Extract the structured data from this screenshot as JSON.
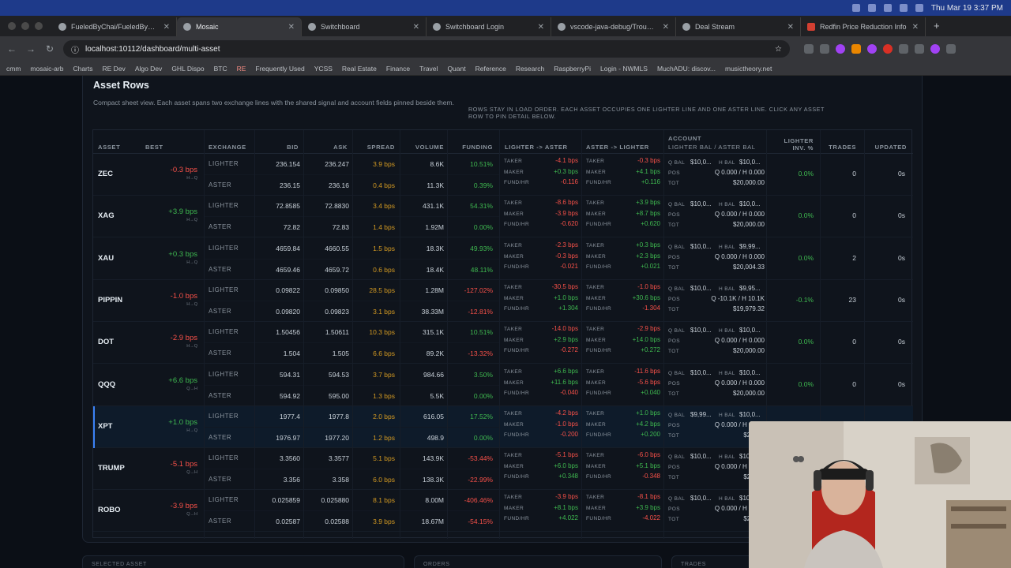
{
  "menubar": {
    "datetime": "Thu Mar 19  3:37 PM"
  },
  "tabs": [
    {
      "title": "FueledByChai/FueledByChaiTr",
      "active": false
    },
    {
      "title": "Mosaic",
      "active": true
    },
    {
      "title": "Switchboard",
      "active": false
    },
    {
      "title": "Switchboard Login",
      "active": false
    },
    {
      "title": "vscode-java-debug/Troubles",
      "active": false
    },
    {
      "title": "Deal Stream",
      "active": false
    },
    {
      "title": "Redfin Price Reduction Info",
      "active": false
    }
  ],
  "url": "localhost:10112/dashboard/multi-asset",
  "bookmarks": [
    "cmm",
    "mosaic-arb",
    "Charts",
    "RE Dev",
    "Algo Dev",
    "GHL Dispo",
    "BTC",
    "RE",
    "Frequently Used",
    "YCSS",
    "Real Estate",
    "Finance",
    "Travel",
    "Quant",
    "Reference",
    "Research",
    "RaspberryPi",
    "Login - NWMLS",
    "MuchADU: discov...",
    "musictheory.net"
  ],
  "panel": {
    "title": "Asset Rows",
    "subtitle": "Compact sheet view. Each asset spans two exchange lines with the shared signal and account fields pinned beside them.",
    "note": "Rows stay in load order. Each asset occupies one Lighter line and one Aster line. Click any asset row to pin detail below."
  },
  "headers": {
    "asset": "ASSET",
    "best": "BEST",
    "exchange": "EXCHANGE",
    "bid": "BID",
    "ask": "ASK",
    "spread": "SPREAD",
    "volume": "VOLUME",
    "funding": "FUNDING",
    "l2a": "LIGHTER -> ASTER",
    "a2l": "ASTER -> LIGHTER",
    "account": "ACCOUNT",
    "account_sub": "LIGHTER BAL / ASTER BAL",
    "inv": "LIGHTER",
    "inv2": "INV. %",
    "trades": "TRADES",
    "updated": "UPDATED"
  },
  "labels": {
    "lighter": "LIGHTER",
    "aster": "ASTER",
    "taker": "TAKER",
    "maker": "MAKER",
    "fund": "FUND/HR",
    "qbal": "Q BAL",
    "hbal": "H BAL",
    "pos": "POS",
    "tot": "TOT"
  },
  "assets": [
    {
      "symbol": "ZEC",
      "best": "-0.3 bps",
      "best_sub": "H→Q",
      "l": {
        "bid": "236.154",
        "ask": "236.247",
        "spread": "3.9 bps",
        "vol": "8.6K",
        "fund": "10.51%"
      },
      "a": {
        "bid": "236.15",
        "ask": "236.16",
        "spread": "0.4 bps",
        "vol": "11.3K",
        "fund": "0.39%"
      },
      "l2a": {
        "taker": "-4.1 bps",
        "maker": "+0.3 bps",
        "fund": "-0.116"
      },
      "a2l": {
        "taker": "-0.3 bps",
        "maker": "+4.1 bps",
        "fund": "+0.116"
      },
      "acct": {
        "qbal": "$10,0...",
        "hbal": "$10,0...",
        "pos": "Q 0.000 / H 0.000",
        "tot": "$20,000.00"
      },
      "inv": "0.0%",
      "trades": "0",
      "updated": "0s"
    },
    {
      "symbol": "XAG",
      "best": "+3.9 bps",
      "best_sub": "H→Q",
      "l": {
        "bid": "72.8585",
        "ask": "72.8830",
        "spread": "3.4 bps",
        "vol": "431.1K",
        "fund": "54.31%"
      },
      "a": {
        "bid": "72.82",
        "ask": "72.83",
        "spread": "1.4 bps",
        "vol": "1.92M",
        "fund": "0.00%"
      },
      "l2a": {
        "taker": "-8.6 bps",
        "maker": "-3.9 bps",
        "fund": "-0.620"
      },
      "a2l": {
        "taker": "+3.9 bps",
        "maker": "+8.7 bps",
        "fund": "+0.620"
      },
      "acct": {
        "qbal": "$10,0...",
        "hbal": "$10,0...",
        "pos": "Q 0.000 / H 0.000",
        "tot": "$20,000.00"
      },
      "inv": "0.0%",
      "trades": "0",
      "updated": "0s"
    },
    {
      "symbol": "XAU",
      "best": "+0.3 bps",
      "best_sub": "H→Q",
      "l": {
        "bid": "4659.84",
        "ask": "4660.55",
        "spread": "1.5 bps",
        "vol": "18.3K",
        "fund": "49.93%"
      },
      "a": {
        "bid": "4659.46",
        "ask": "4659.72",
        "spread": "0.6 bps",
        "vol": "18.4K",
        "fund": "48.11%"
      },
      "l2a": {
        "taker": "-2.3 bps",
        "maker": "-0.3 bps",
        "fund": "-0.021"
      },
      "a2l": {
        "taker": "+0.3 bps",
        "maker": "+2.3 bps",
        "fund": "+0.021"
      },
      "acct": {
        "qbal": "$10,0...",
        "hbal": "$9,99...",
        "pos": "Q 0.000 / H 0.000",
        "tot": "$20,004.33"
      },
      "inv": "0.0%",
      "trades": "2",
      "updated": "0s"
    },
    {
      "symbol": "PIPPIN",
      "best": "-1.0 bps",
      "best_sub": "H→Q",
      "l": {
        "bid": "0.09822",
        "ask": "0.09850",
        "spread": "28.5 bps",
        "vol": "1.28M",
        "fund": "-127.02%"
      },
      "a": {
        "bid": "0.09820",
        "ask": "0.09823",
        "spread": "3.1 bps",
        "vol": "38.33M",
        "fund": "-12.81%"
      },
      "l2a": {
        "taker": "-30.5 bps",
        "maker": "+1.0 bps",
        "fund": "+1.304"
      },
      "a2l": {
        "taker": "-1.0 bps",
        "maker": "+30.6 bps",
        "fund": "-1.304"
      },
      "acct": {
        "qbal": "$10,0...",
        "hbal": "$9,95...",
        "pos": "Q -10.1K / H 10.1K",
        "tot": "$19,979.32"
      },
      "inv": "-0.1%",
      "trades": "23",
      "updated": "0s"
    },
    {
      "symbol": "DOT",
      "best": "-2.9 bps",
      "best_sub": "H→Q",
      "l": {
        "bid": "1.50456",
        "ask": "1.50611",
        "spread": "10.3 bps",
        "vol": "315.1K",
        "fund": "10.51%"
      },
      "a": {
        "bid": "1.504",
        "ask": "1.505",
        "spread": "6.6 bps",
        "vol": "89.2K",
        "fund": "-13.32%"
      },
      "l2a": {
        "taker": "-14.0 bps",
        "maker": "+2.9 bps",
        "fund": "-0.272"
      },
      "a2l": {
        "taker": "-2.9 bps",
        "maker": "+14.0 bps",
        "fund": "+0.272"
      },
      "acct": {
        "qbal": "$10,0...",
        "hbal": "$10,0...",
        "pos": "Q 0.000 / H 0.000",
        "tot": "$20,000.00"
      },
      "inv": "0.0%",
      "trades": "0",
      "updated": "0s"
    },
    {
      "symbol": "QQQ",
      "best": "+6.6 bps",
      "best_sub": "Q→H",
      "l": {
        "bid": "594.31",
        "ask": "594.53",
        "spread": "3.7 bps",
        "vol": "984.66",
        "fund": "3.50%"
      },
      "a": {
        "bid": "594.92",
        "ask": "595.00",
        "spread": "1.3 bps",
        "vol": "5.5K",
        "fund": "0.00%"
      },
      "l2a": {
        "taker": "+6.6 bps",
        "maker": "+11.6 bps",
        "fund": "-0.040"
      },
      "a2l": {
        "taker": "-11.6 bps",
        "maker": "-5.6 bps",
        "fund": "+0.040"
      },
      "acct": {
        "qbal": "$10,0...",
        "hbal": "$10,0...",
        "pos": "Q 0.000 / H 0.000",
        "tot": "$20,000.00"
      },
      "inv": "0.0%",
      "trades": "0",
      "updated": "0s"
    },
    {
      "symbol": "XPT",
      "best": "+1.0 bps",
      "best_sub": "H→Q",
      "selected": true,
      "l": {
        "bid": "1977.4",
        "ask": "1977.8",
        "spread": "2.0 bps",
        "vol": "616.05",
        "fund": "17.52%"
      },
      "a": {
        "bid": "1976.97",
        "ask": "1977.20",
        "spread": "1.2 bps",
        "vol": "498.9",
        "fund": "0.00%"
      },
      "l2a": {
        "taker": "-4.2 bps",
        "maker": "-1.0 bps",
        "fund": "-0.200"
      },
      "a2l": {
        "taker": "+1.0 bps",
        "maker": "+4.2 bps",
        "fund": "+0.200"
      },
      "acct": {
        "qbal": "$9,99...",
        "hbal": "$10,0...",
        "pos": "Q 0.000 / H 0.000",
        "tot": "$20,0..."
      },
      "inv": "",
      "trades": "",
      "updated": ""
    },
    {
      "symbol": "TRUMP",
      "best": "-5.1 bps",
      "best_sub": "Q→H",
      "l": {
        "bid": "3.3560",
        "ask": "3.3577",
        "spread": "5.1 bps",
        "vol": "143.9K",
        "fund": "-53.44%"
      },
      "a": {
        "bid": "3.356",
        "ask": "3.358",
        "spread": "6.0 bps",
        "vol": "138.3K",
        "fund": "-22.99%"
      },
      "l2a": {
        "taker": "-5.1 bps",
        "maker": "+6.0 bps",
        "fund": "+0.348"
      },
      "a2l": {
        "taker": "-6.0 bps",
        "maker": "+5.1 bps",
        "fund": "-0.348"
      },
      "acct": {
        "qbal": "$10,0...",
        "hbal": "$10,0...",
        "pos": "Q 0.000 / H 0.000",
        "tot": "$20,0..."
      },
      "inv": "",
      "trades": "",
      "updated": ""
    },
    {
      "symbol": "ROBO",
      "best": "-3.9 bps",
      "best_sub": "Q→H",
      "l": {
        "bid": "0.025859",
        "ask": "0.025880",
        "spread": "8.1 bps",
        "vol": "8.00M",
        "fund": "-406.46%"
      },
      "a": {
        "bid": "0.02587",
        "ask": "0.02588",
        "spread": "3.9 bps",
        "vol": "18.67M",
        "fund": "-54.15%"
      },
      "l2a": {
        "taker": "-3.9 bps",
        "maker": "+8.1 bps",
        "fund": "+4.022"
      },
      "a2l": {
        "taker": "-8.1 bps",
        "maker": "+3.9 bps",
        "fund": "-4.022"
      },
      "acct": {
        "qbal": "$10,0...",
        "hbal": "$10,0...",
        "pos": "Q 0.000 / H 0.000",
        "tot": "$20,0..."
      },
      "inv": "",
      "trades": "",
      "updated": ""
    }
  ],
  "bottom": {
    "selected": "SELECTED ASSET",
    "orders": "ORDERS",
    "trades": "TRADES"
  },
  "colors": {
    "positive": "#3fb950",
    "negative": "#f85149",
    "warning": "#d29922",
    "accent": "#3b82f6"
  }
}
